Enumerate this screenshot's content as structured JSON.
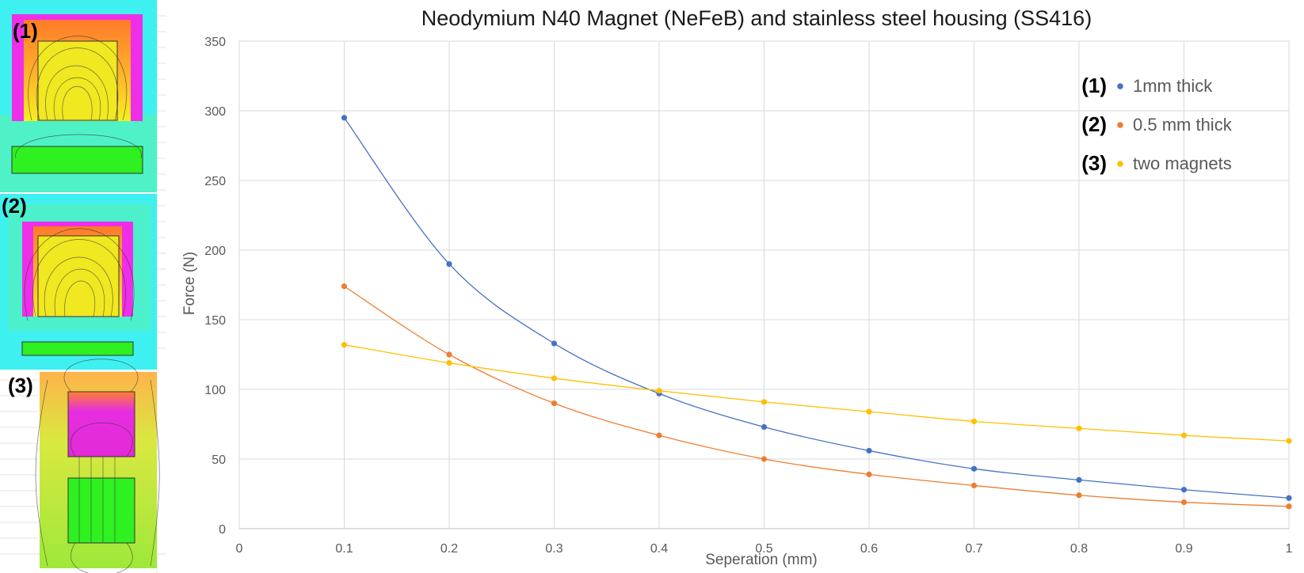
{
  "panels": [
    {
      "label": "(1)"
    },
    {
      "label": "(2)"
    },
    {
      "label": "(3)"
    }
  ],
  "chart_data": {
    "type": "scatter",
    "title": "Neodymium N40 Magnet (NeFeB) and stainless steel housing (SS416)",
    "xlabel": "Seperation (mm)",
    "ylabel": "Force (N)",
    "xlim": [
      0,
      1
    ],
    "ylim": [
      0,
      350
    ],
    "x_ticks": [
      "0",
      "0.1",
      "0.2",
      "0.3",
      "0.4",
      "0.5",
      "0.6",
      "0.7",
      "0.8",
      "0.9",
      "1"
    ],
    "y_ticks": [
      "0",
      "50",
      "100",
      "150",
      "200",
      "250",
      "300",
      "350"
    ],
    "grid": true,
    "legend_position": "top-right",
    "x": [
      0.1,
      0.2,
      0.3,
      0.4,
      0.5,
      0.6,
      0.7,
      0.8,
      0.9,
      1.0
    ],
    "series": [
      {
        "name": "1mm thick",
        "tag": "(1)",
        "color": "#4472C4",
        "values": [
          295,
          190,
          133,
          97,
          73,
          56,
          43,
          35,
          28,
          22
        ]
      },
      {
        "name": "0.5 mm thick",
        "tag": "(2)",
        "color": "#ED7D31",
        "values": [
          174,
          125,
          90,
          67,
          50,
          39,
          31,
          24,
          19,
          16
        ]
      },
      {
        "name": "two magnets",
        "tag": "(3)",
        "color": "#FFC000",
        "values": [
          132,
          119,
          108,
          99,
          91,
          84,
          77,
          72,
          67,
          63
        ]
      }
    ]
  }
}
